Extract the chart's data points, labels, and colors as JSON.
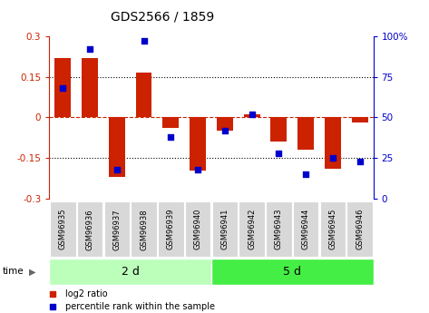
{
  "title": "GDS2566 / 1859",
  "samples": [
    "GSM96935",
    "GSM96936",
    "GSM96937",
    "GSM96938",
    "GSM96939",
    "GSM96940",
    "GSM96941",
    "GSM96942",
    "GSM96943",
    "GSM96944",
    "GSM96945",
    "GSM96946"
  ],
  "log2_ratio": [
    0.22,
    0.22,
    -0.22,
    0.165,
    -0.04,
    -0.195,
    -0.05,
    0.01,
    -0.09,
    -0.12,
    -0.19,
    -0.02
  ],
  "percentile_rank": [
    68,
    92,
    18,
    97,
    38,
    18,
    42,
    52,
    28,
    15,
    25,
    23
  ],
  "group1_label": "2 d",
  "group2_label": "5 d",
  "group1_count": 6,
  "group2_count": 6,
  "ylim": [
    -0.3,
    0.3
  ],
  "yticks_left": [
    -0.3,
    -0.15,
    0,
    0.15,
    0.3
  ],
  "yticks_right": [
    0,
    25,
    50,
    75,
    100
  ],
  "bar_color": "#cc2200",
  "dot_color": "#0000cc",
  "group1_color": "#bbffbb",
  "group2_color": "#44ee44",
  "legend_red_label": "log2 ratio",
  "legend_blue_label": "percentile rank within the sample",
  "time_label": "time"
}
